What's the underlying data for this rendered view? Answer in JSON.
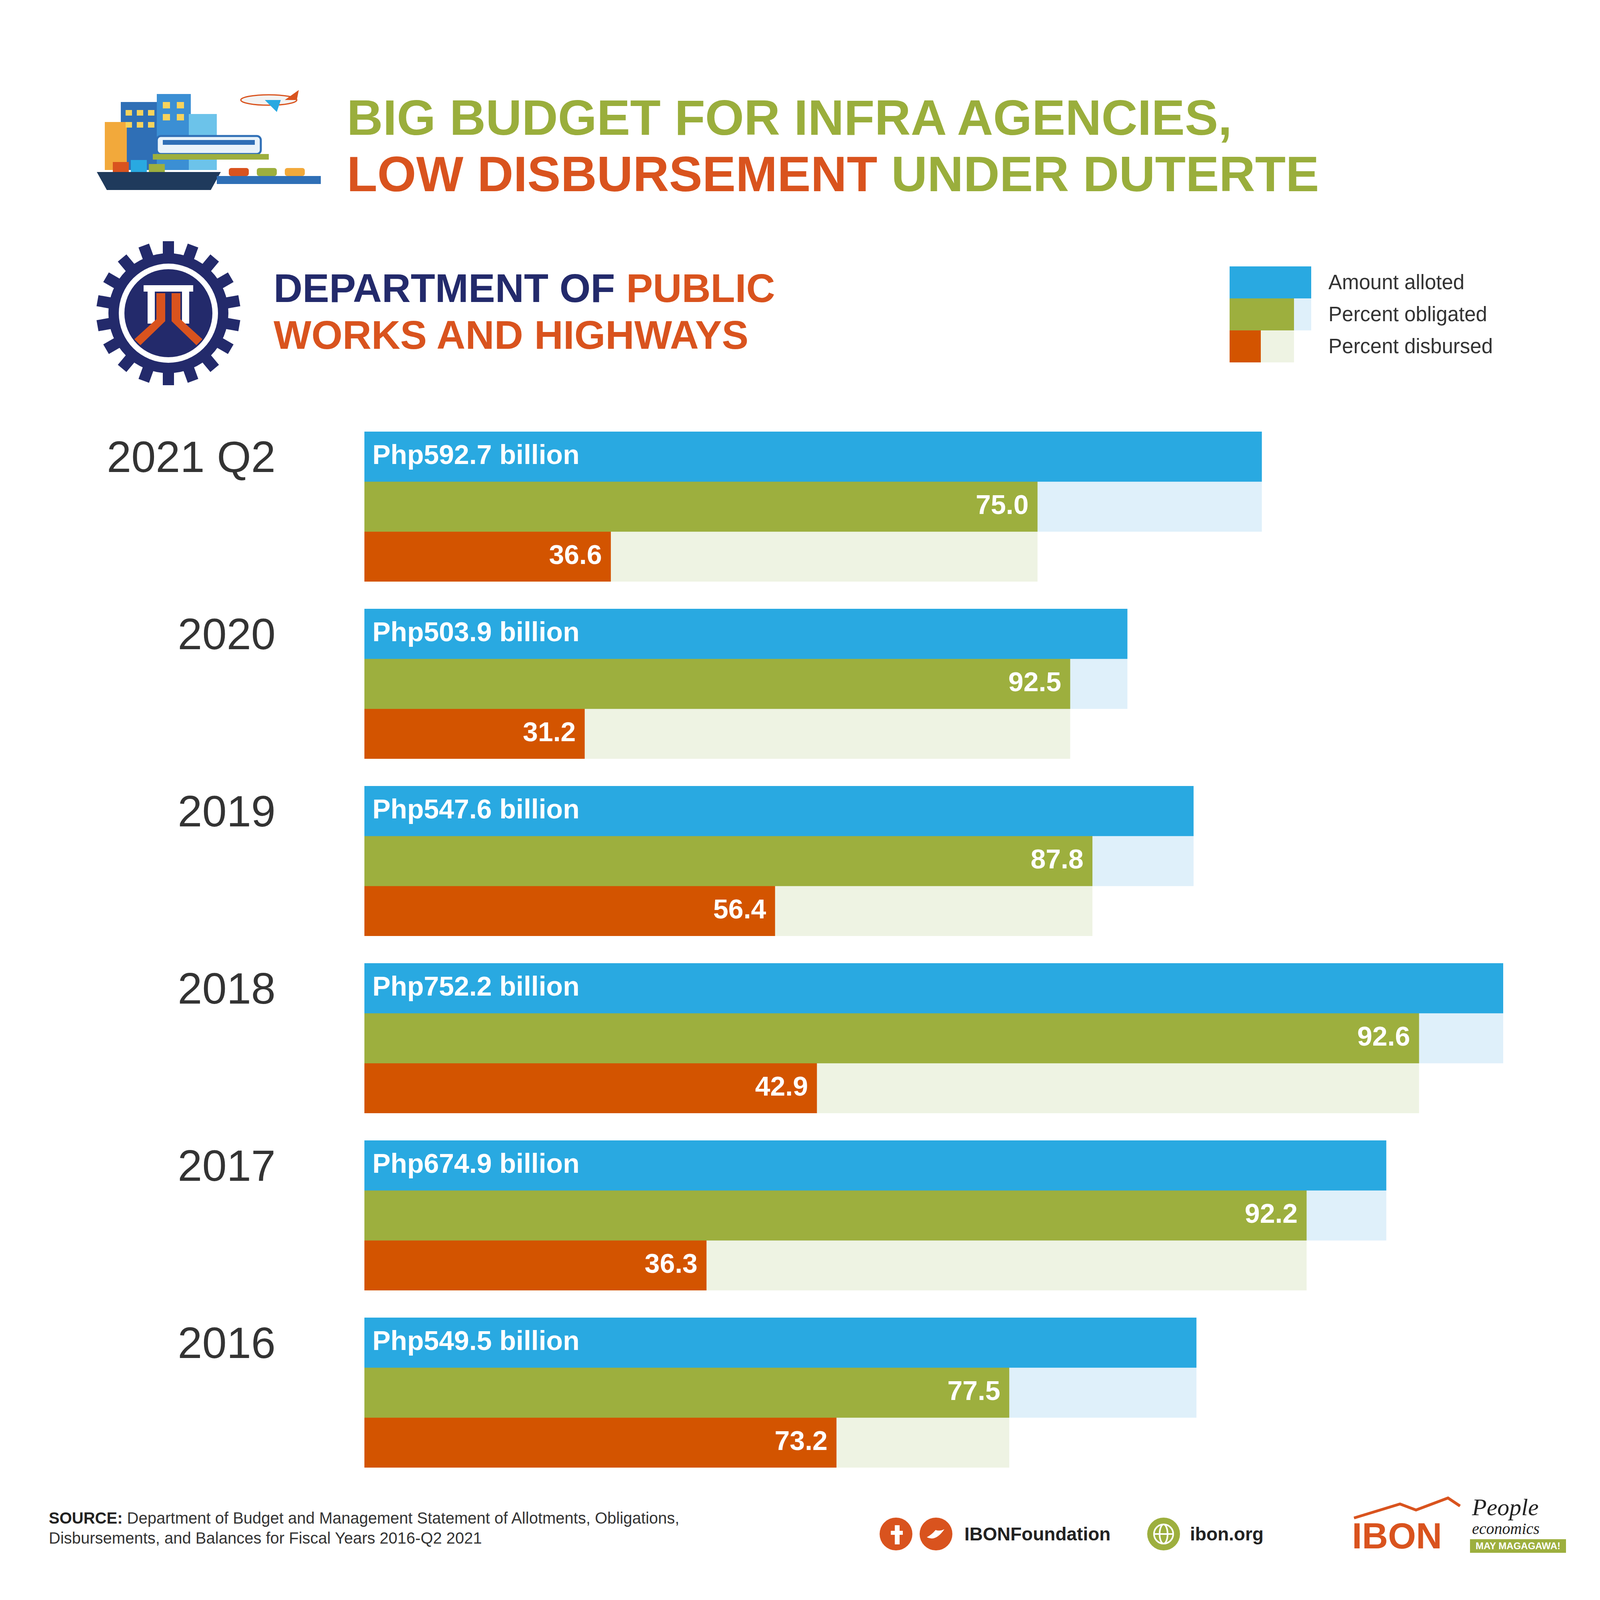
{
  "chart_data": {
    "type": "bar",
    "title": [
      "BIG BUDGET FOR INFRA AGENCIES,",
      "LOW DISBURSEMENT",
      "UNDER DUTERTE"
    ],
    "subtitle": [
      "DEPARTMENT OF",
      "PUBLIC WORKS AND HIGHWAYS"
    ],
    "orientation": "horizontal",
    "categories": [
      "2021 Q2",
      "2020",
      "2019",
      "2018",
      "2017",
      "2016"
    ],
    "series": [
      {
        "name": "Amount alloted",
        "color": "#29A9E1",
        "values": [
          592.7,
          503.9,
          547.6,
          752.2,
          674.9,
          549.5
        ],
        "value_labels": [
          "Php592.7 billion",
          "Php503.9 billion",
          "Php547.6 billion",
          "Php752.2 billion",
          "Php674.9 billion",
          "Php549.5 billion"
        ]
      },
      {
        "name": "Percent obligated",
        "color": "#9DAF3E",
        "values": [
          75.0,
          92.5,
          87.8,
          92.6,
          92.2,
          77.5
        ],
        "value_labels": [
          "75.0",
          "92.5",
          "87.8",
          "92.6",
          "92.2",
          "77.5"
        ]
      },
      {
        "name": "Percent disbursed",
        "color": "#D35400",
        "values": [
          36.6,
          31.2,
          56.4,
          42.9,
          36.3,
          73.2
        ]
      }
    ],
    "xlim": [
      0,
      752.2
    ],
    "tick_labels": false,
    "grid": false,
    "legend": "upper right",
    "data_labels": true
  },
  "source": {
    "label": "SOURCE:",
    "text": "Department of Budget and Management Statement of Allotments, Obligations, Disbursements, and Balances for Fiscal Years 2016-Q2 2021"
  },
  "footer": {
    "social": "IBONFoundation",
    "website": "ibon.org",
    "logo": "IBON",
    "tagline": [
      "People",
      "economics"
    ],
    "motto": "MAY MAGAGAWA!"
  }
}
